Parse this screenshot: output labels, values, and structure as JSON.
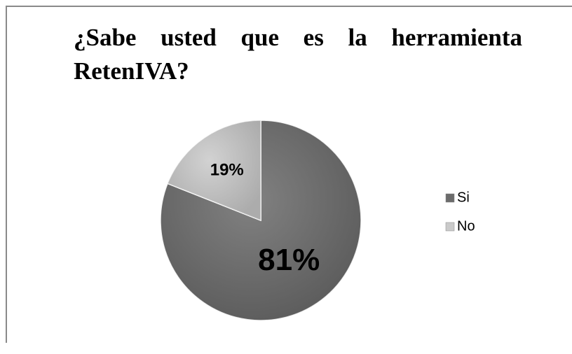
{
  "chart_data": {
    "type": "pie",
    "title": "¿Sabe usted que es la herramienta RetenIVA?",
    "categories": [
      "Si",
      "No"
    ],
    "values": [
      81,
      19
    ],
    "value_labels": [
      "81%",
      "19%"
    ],
    "colors": [
      "#6b6b6b",
      "#cacaca"
    ],
    "legend": "right"
  }
}
